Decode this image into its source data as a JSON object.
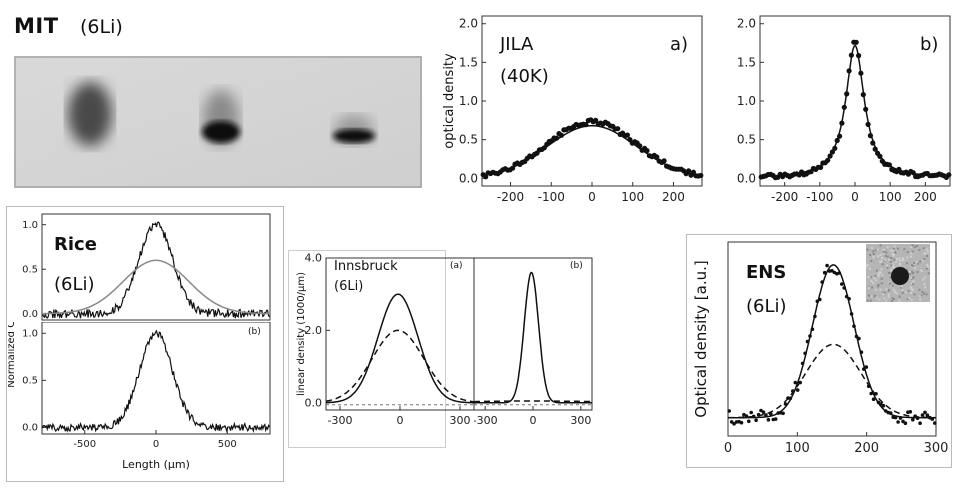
{
  "mit": {
    "title": "MIT",
    "subtitle": "(6Li)"
  },
  "chart_data": [
    {
      "id": "jila_a",
      "type": "line",
      "title": "JILA",
      "subtitle": "(40K)",
      "panel_label": "a)",
      "ylabel": "optical density",
      "xlim": [
        -270,
        270
      ],
      "ylim": [
        -0.1,
        2.1
      ],
      "xticks": [
        -200,
        -100,
        0,
        100,
        200
      ],
      "yticks": [
        0.0,
        0.5,
        1.0,
        1.5,
        2.0
      ],
      "xtick_labels": [
        "-200",
        "-100",
        "0",
        "100",
        "200"
      ],
      "ytick_labels": [
        "0.0",
        "0.5",
        "1.0",
        "1.5",
        "2.0"
      ],
      "series": [
        {
          "kind": "fit",
          "shape": "gaussian",
          "amplitude": 0.68,
          "center": 0,
          "sigma": 110,
          "offset": 0.0
        },
        {
          "kind": "data",
          "shape": "gaussian",
          "amplitude": 0.72,
          "center": 0,
          "sigma": 108,
          "offset": 0.01,
          "noise": 0.03,
          "n": 90
        }
      ]
    },
    {
      "id": "jila_b",
      "type": "line",
      "panel_label": "b)",
      "xlim": [
        -270,
        270
      ],
      "ylim": [
        -0.1,
        2.1
      ],
      "xticks": [
        -200,
        -100,
        0,
        100,
        200
      ],
      "yticks": [
        0.0,
        0.5,
        1.0,
        1.5,
        2.0
      ],
      "xtick_labels": [
        "-200",
        "-100",
        "0",
        "100",
        "200"
      ],
      "ytick_labels": [
        "0.0",
        "0.5",
        "1.0",
        "1.5",
        "2.0"
      ],
      "series": [
        {
          "kind": "fit",
          "shape": "lorentz",
          "amplitude": 1.72,
          "center": 0,
          "width": 32,
          "offset": 0.0
        },
        {
          "kind": "data",
          "shape": "lorentz",
          "amplitude": 1.8,
          "center": 0,
          "width": 30,
          "offset": 0.0,
          "noise": 0.03,
          "n": 80
        }
      ]
    },
    {
      "id": "rice_top",
      "type": "line",
      "title": "Rice",
      "subtitle": "(6Li)",
      "xlim": [
        -800,
        800
      ],
      "ylim": [
        -0.07,
        1.12
      ],
      "yticks": [
        0.0,
        0.5,
        1.0
      ],
      "ytick_labels": [
        "0.0",
        "0.5",
        "1.0"
      ],
      "series": [
        {
          "kind": "data",
          "shape": "gaussian",
          "amplitude": 1.0,
          "center": 0,
          "sigma": 120,
          "offset": 0.0,
          "noise": 0.05,
          "n": 240
        },
        {
          "kind": "fit",
          "shape": "gaussian",
          "amplitude": 0.6,
          "center": 0,
          "sigma": 230,
          "offset": 0.0,
          "color": "#888888"
        }
      ]
    },
    {
      "id": "rice_bottom",
      "type": "line",
      "panel_label": "(b)",
      "xlabel": "Length (μm)",
      "ylabel": "Normalized Column Density",
      "xlim": [
        -800,
        800
      ],
      "ylim": [
        -0.07,
        1.12
      ],
      "xticks": [
        -500,
        0,
        500
      ],
      "xtick_labels": [
        "-500",
        "0",
        "500"
      ],
      "yticks": [
        0.0,
        0.5,
        1.0
      ],
      "ytick_labels": [
        "0.0",
        "0.5",
        "1.0"
      ],
      "series": [
        {
          "kind": "data",
          "shape": "gaussian",
          "amplitude": 1.0,
          "center": 0,
          "sigma": 115,
          "offset": 0.0,
          "noise": 0.04,
          "n": 240
        }
      ]
    },
    {
      "id": "innsbruck_a",
      "type": "line",
      "title": "Innsbruck",
      "subtitle": "(6Li)",
      "panel_label": "(a)",
      "ylabel": "linear density (1000/μm)",
      "xlim": [
        -370,
        370
      ],
      "ylim": [
        -0.2,
        4.0
      ],
      "xticks": [
        -300,
        0,
        300
      ],
      "xtick_labels": [
        "-300",
        "0",
        "300"
      ],
      "yticks": [
        0.0,
        2.0,
        4.0
      ],
      "ytick_labels": [
        "0.0",
        "2.0",
        "4.0"
      ],
      "series": [
        {
          "kind": "fit",
          "shape": "gaussian",
          "amplitude": 3.0,
          "center": -10,
          "sigma": 100,
          "offset": 0.0
        },
        {
          "kind": "fit",
          "shape": "gaussian",
          "amplitude": 2.0,
          "center": -10,
          "sigma": 130,
          "offset": 0.0,
          "dash": true
        }
      ]
    },
    {
      "id": "innsbruck_b",
      "type": "line",
      "panel_label": "(b)",
      "xlim": [
        -370,
        370
      ],
      "ylim": [
        -0.2,
        4.0
      ],
      "xticks": [
        -300,
        0,
        300
      ],
      "xtick_labels": [
        "-300",
        "0",
        "300"
      ],
      "series": [
        {
          "kind": "fit",
          "shape": "gaussian",
          "amplitude": 3.6,
          "center": -10,
          "sigma": 45,
          "offset": 0.0
        },
        {
          "kind": "fit",
          "shape": "gaussian",
          "amplitude": 0.05,
          "center": 0,
          "sigma": 400,
          "offset": 0.0,
          "dash": true
        }
      ]
    },
    {
      "id": "ens",
      "type": "scatter",
      "title": "ENS",
      "subtitle": "(6Li)",
      "ylabel": "Optical density [a.u.]",
      "xlim": [
        0,
        300
      ],
      "ylim": [
        -0.12,
        1.15
      ],
      "xticks": [
        0,
        100,
        200,
        300
      ],
      "xtick_labels": [
        "0",
        "100",
        "200",
        "300"
      ],
      "series": [
        {
          "kind": "data",
          "shape": "gaussian",
          "amplitude": 1.0,
          "center": 152,
          "sigma": 30,
          "offset": 0.0,
          "noise": 0.05,
          "n": 85
        },
        {
          "kind": "fit",
          "shape": "gaussian",
          "amplitude": 1.0,
          "center": 152,
          "sigma": 30,
          "offset": 0.0
        },
        {
          "kind": "fit",
          "shape": "gaussian",
          "amplitude": 0.48,
          "center": 152,
          "sigma": 40,
          "offset": 0.0,
          "dash": true
        }
      ]
    }
  ]
}
